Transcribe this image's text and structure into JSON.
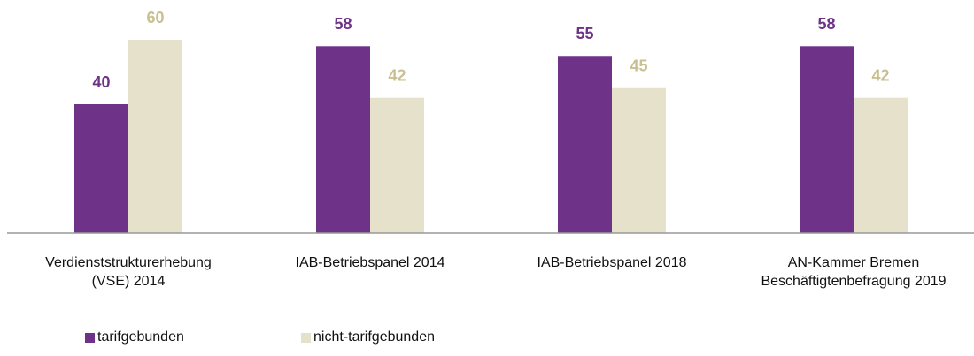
{
  "chart_data": {
    "type": "bar",
    "categories": [
      "Verdienststrukturerhebung\n(VSE) 2014",
      "IAB-Betriebspanel 2014",
      "IAB-Betriebspanel 2018",
      "AN-Kammer Bremen\nBeschäftigtenbefragung 2019"
    ],
    "series": [
      {
        "name": "tarifgebunden",
        "color": "#6e3288",
        "label_color": "#6e3288",
        "values": [
          40,
          58,
          55,
          58
        ]
      },
      {
        "name": "nicht-tarifgebunden",
        "color": "#e6e1cb",
        "label_color": "#c9bf8f",
        "values": [
          60,
          42,
          45,
          42
        ]
      }
    ]
  }
}
